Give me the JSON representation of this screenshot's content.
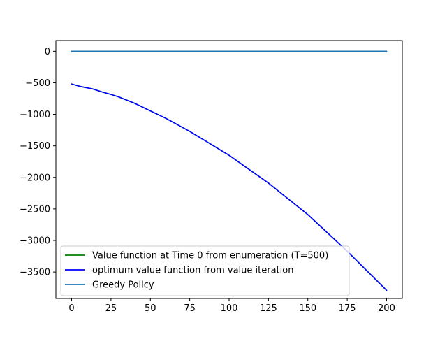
{
  "chart_data": {
    "type": "line",
    "title": "",
    "xlabel": "",
    "ylabel": "",
    "xlim": [
      -10,
      210
    ],
    "ylim": [
      -3920,
      170
    ],
    "x_ticks": [
      0,
      25,
      50,
      75,
      100,
      125,
      150,
      175,
      200
    ],
    "x_tick_labels": [
      "0",
      "25",
      "50",
      "75",
      "100",
      "125",
      "150",
      "175",
      "200"
    ],
    "y_ticks": [
      0,
      -500,
      -1000,
      -1500,
      -2000,
      -2500,
      -3000,
      -3500
    ],
    "y_tick_labels": [
      "0",
      "−500",
      "−1000",
      "−1500",
      "−2000",
      "−2500",
      "−3000",
      "−3500"
    ],
    "grid": false,
    "legend_position": "lower-left",
    "series": [
      {
        "name": "Value function at Time 0 from enumeration (T=500)",
        "color": "#008000",
        "x": [
          0,
          5,
          10,
          13,
          20,
          25,
          30,
          40,
          50,
          60,
          75,
          100,
          125,
          150,
          175,
          200
        ],
        "y": [
          -520,
          -555,
          -580,
          -595,
          -650,
          -685,
          -725,
          -825,
          -945,
          -1065,
          -1270,
          -1650,
          -2090,
          -2590,
          -3170,
          -3790
        ]
      },
      {
        "name": "optimum value function from value iteration",
        "color": "#0000ff",
        "x": [
          0,
          5,
          10,
          13,
          20,
          25,
          30,
          40,
          50,
          60,
          75,
          100,
          125,
          150,
          175,
          200
        ],
        "y": [
          -520,
          -555,
          -580,
          -595,
          -650,
          -685,
          -725,
          -825,
          -945,
          -1065,
          -1270,
          -1650,
          -2090,
          -2590,
          -3170,
          -3790
        ]
      },
      {
        "name": "Greedy Policy",
        "color": "#1f77b4",
        "x": [
          0,
          200
        ],
        "y": [
          0,
          0
        ]
      }
    ]
  }
}
